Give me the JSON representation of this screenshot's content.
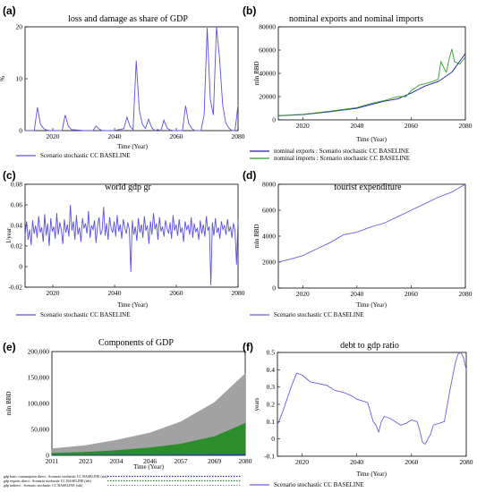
{
  "chart_data": [
    {
      "id": "a",
      "panel_label": "(a)",
      "type": "line",
      "title": "loss and damage as share of GDP",
      "xlabel": "Time (Year)",
      "ylabel": "%",
      "xlim": [
        2011,
        2080
      ],
      "ylim": [
        0,
        20
      ],
      "xticks": [
        "2020",
        "2040",
        "2060",
        "2080"
      ],
      "yticks": [
        "0",
        "10",
        "20"
      ],
      "series": [
        {
          "name": "Scenario stochastic CC BASELINE",
          "color": "#5a4fe6",
          "x": [
            2011,
            2014,
            2015,
            2016,
            2017,
            2018,
            2019,
            2020,
            2023,
            2024,
            2025,
            2026,
            2030,
            2033,
            2034,
            2035,
            2036,
            2037,
            2040,
            2043,
            2044,
            2045,
            2046,
            2047,
            2048,
            2049,
            2050,
            2051,
            2052,
            2053,
            2054,
            2055,
            2056,
            2057,
            2058,
            2059,
            2060,
            2061,
            2062,
            2063,
            2064,
            2065,
            2066,
            2067,
            2068,
            2069,
            2070,
            2071,
            2072,
            2073,
            2074,
            2075,
            2076,
            2077,
            2078,
            2079,
            2080
          ],
          "y": [
            0,
            0,
            4.5,
            1.2,
            0.4,
            0.1,
            0,
            0,
            0,
            3,
            0.9,
            0.2,
            0,
            0,
            0.9,
            0.3,
            0,
            0,
            0,
            0.4,
            2.6,
            0.8,
            0.2,
            13.5,
            4,
            1.2,
            0.4,
            2.2,
            0.6,
            0,
            0.2,
            0,
            2,
            0.5,
            0.1,
            0,
            0,
            0,
            0,
            4.8,
            1.4,
            0.4,
            0,
            0,
            0,
            3,
            19.8,
            6,
            3,
            20,
            14,
            5,
            1.5,
            0.5,
            0,
            0,
            5
          ]
        }
      ]
    },
    {
      "id": "b",
      "panel_label": "(b)",
      "type": "line",
      "title": "nominal exports and nominal imports",
      "xlabel": "Time (Year)",
      "ylabel": "mln BBD",
      "xlim": [
        2011,
        2080
      ],
      "ylim": [
        0,
        80000
      ],
      "xticks": [
        "2020",
        "2040",
        "2060",
        "2080"
      ],
      "yticks": [
        "0",
        "20000",
        "40000",
        "60000",
        "80000"
      ],
      "series": [
        {
          "name": "nominal exports : Scenario stochastic CC BASELINE",
          "color": "#1f1aa8",
          "x": [
            2011,
            2020,
            2030,
            2040,
            2045,
            2050,
            2055,
            2060,
            2065,
            2070,
            2075,
            2080
          ],
          "y": [
            3500,
            4500,
            7000,
            10000,
            13000,
            16000,
            18000,
            23000,
            29000,
            33000,
            41000,
            57000
          ]
        },
        {
          "name": "nominal imports : Scenario stochastic CC BASELINE",
          "color": "#2ca02c",
          "x": [
            2011,
            2020,
            2030,
            2040,
            2045,
            2047,
            2050,
            2055,
            2058,
            2060,
            2063,
            2065,
            2068,
            2070,
            2071,
            2072,
            2073,
            2074,
            2075,
            2076,
            2078,
            2080
          ],
          "y": [
            3700,
            4800,
            7500,
            10500,
            14000,
            15000,
            16500,
            20000,
            20000,
            25000,
            30000,
            31000,
            33000,
            35000,
            50000,
            45000,
            41000,
            52000,
            61000,
            50000,
            48000,
            54000
          ]
        }
      ]
    },
    {
      "id": "c",
      "panel_label": "(c)",
      "type": "line",
      "title": "world gdp gr",
      "xlabel": "Time (Year)",
      "ylabel": "1/year",
      "xlim": [
        2011,
        2080
      ],
      "ylim": [
        -0.02,
        0.08
      ],
      "xticks": [
        "2020",
        "2040",
        "2060",
        "2080"
      ],
      "yticks": [
        "-0.02",
        "0",
        "0.02",
        "0.04",
        "0.06",
        "0.08"
      ],
      "series": [
        {
          "name": "Scenario stochastic CC BASELINE",
          "color": "#5a4fe6",
          "y": [
            0.03,
            0.044,
            0.026,
            0.036,
            0.021,
            0.045,
            0.032,
            0.04,
            0.028,
            0.049,
            0.033,
            0.038,
            0.024,
            0.051,
            0.03,
            0.042,
            0.02,
            0.047,
            0.034,
            0.039,
            0.027,
            0.052,
            0.031,
            0.043,
            0.036,
            0.022,
            0.046,
            0.033,
            0.041,
            0.029,
            0.06,
            0.035,
            0.044,
            0.026,
            0.05,
            0.031,
            0.038,
            0.024,
            0.047,
            0.037,
            0.042,
            0.032,
            0.054,
            0.028,
            0.04,
            0.036,
            0.045,
            0.023,
            0.039,
            0.048,
            0.031,
            0.035,
            0.058,
            0.03,
            0.042,
            0.026,
            0.048,
            0.037,
            0.033,
            0.044,
            0.029,
            0.05,
            0.034,
            0.041,
            0.027,
            0.046,
            0.038,
            0.032,
            0.043,
            0.036,
            -0.005,
            0.045,
            0.031,
            0.039,
            0.025,
            0.047,
            0.033,
            0.041,
            0.028,
            0.049,
            0.035,
            0.04,
            0.022,
            0.044,
            0.031,
            0.052,
            0.036,
            0.042,
            0.026,
            0.048,
            0.034,
            0.039,
            0.029,
            0.045,
            0.037,
            0.032,
            0.043,
            0.027,
            0.05,
            0.035,
            0.041,
            0.03,
            0.046,
            0.033,
            0.038,
            0.024,
            0.044,
            0.036,
            0.04,
            0.031,
            0.048,
            0.028,
            0.042,
            0.034,
            0.037,
            0.026,
            0.045,
            0.032,
            0.041,
            0.029,
            0.049,
            0.035,
            0.039,
            -0.018,
            0.043,
            0.03,
            0.047,
            0.033,
            0.038,
            0.027,
            0.044,
            0.036,
            0.04,
            0.031,
            0.046,
            0.034,
            0.039,
            0.028,
            0.042,
            0.035,
            0.002,
            0.045
          ]
        }
      ]
    },
    {
      "id": "d",
      "panel_label": "(d)",
      "type": "line",
      "title": "tourist expenditure",
      "xlabel": "Time (Year)",
      "ylabel": "mln BBD",
      "xlim": [
        2011,
        2080
      ],
      "ylim": [
        0,
        8000
      ],
      "xticks": [
        "2020",
        "2040",
        "2060",
        "2080"
      ],
      "yticks": [
        "0",
        "2000",
        "4000",
        "6000",
        "8000"
      ],
      "series": [
        {
          "name": "Scenario stochastic CC BASELINE",
          "color": "#6a5fe8",
          "x": [
            2011,
            2015,
            2020,
            2025,
            2030,
            2035,
            2040,
            2045,
            2050,
            2055,
            2060,
            2065,
            2070,
            2075,
            2080
          ],
          "y": [
            2000,
            2200,
            2500,
            3000,
            3500,
            4100,
            4300,
            4700,
            5000,
            5500,
            6000,
            6500,
            7000,
            7400,
            8000
          ]
        }
      ]
    },
    {
      "id": "e",
      "panel_label": "(e)",
      "type": "area",
      "title": "Components of GDP",
      "xlabel": "Time (Year)",
      "ylabel": "mln BBD",
      "xlim": [
        2011,
        2080
      ],
      "ylim": [
        0,
        200000
      ],
      "xticks": [
        "2011",
        "2023",
        "2034",
        "2046",
        "2057",
        "2069",
        "2080"
      ],
      "yticks": [
        "0",
        "50,000",
        "100,000",
        "150,000",
        "200,000"
      ],
      "x": [
        2011,
        2023,
        2034,
        2046,
        2057,
        2069,
        2080
      ],
      "series": [
        {
          "name": "gdp basic consumption direct : Scenario stochastic CC BASELINE (stk)",
          "color": "#2a2ab8",
          "values": [
            800,
            1000,
            1200,
            1400,
            1700,
            2000,
            2500
          ]
        },
        {
          "name": "gdp exports direct : Scenario stochastic CC BASELINE (stk)",
          "color": "#1f8a1f",
          "values": [
            4000,
            6000,
            9000,
            14000,
            21000,
            35000,
            60000
          ]
        },
        {
          "name": "gdp indirect : Scenario stochastic CC BASELINE (stk)",
          "color": "#9e9e9e",
          "values": [
            8000,
            12000,
            19000,
            28000,
            42000,
            65000,
            95000
          ]
        }
      ]
    },
    {
      "id": "f",
      "panel_label": "(f)",
      "type": "line",
      "title": "debt to gdp ratio",
      "xlabel": "Time (Year)",
      "ylabel": "years",
      "xlim": [
        2011,
        2080
      ],
      "ylim": [
        -0.1,
        0.5
      ],
      "xticks": [
        "2020",
        "2040",
        "2060",
        "2080"
      ],
      "yticks": [
        "-0.1",
        "0",
        "0.1",
        "0.2",
        "0.3",
        "0.4",
        "0.5"
      ],
      "series": [
        {
          "name": "Scenario stochastic CC BASELINE",
          "color": "#6a5fe8",
          "x": [
            2011,
            2013,
            2016,
            2018,
            2020,
            2023,
            2026,
            2029,
            2032,
            2035,
            2038,
            2040,
            2042,
            2044,
            2046,
            2047,
            2048,
            2049,
            2050,
            2052,
            2054,
            2056,
            2058,
            2060,
            2062,
            2063,
            2064,
            2065,
            2066,
            2067,
            2068,
            2070,
            2072,
            2074,
            2076,
            2077,
            2078,
            2079,
            2080
          ],
          "y": [
            0.08,
            0.16,
            0.3,
            0.38,
            0.37,
            0.33,
            0.32,
            0.31,
            0.28,
            0.27,
            0.25,
            0.23,
            0.22,
            0.21,
            0.1,
            0.08,
            0.04,
            0.1,
            0.13,
            0.12,
            0.1,
            0.08,
            0.09,
            0.11,
            0.1,
            0.05,
            -0.02,
            -0.03,
            0.0,
            0.03,
            0.08,
            0.09,
            0.1,
            0.28,
            0.44,
            0.49,
            0.5,
            0.47,
            0.4
          ]
        }
      ]
    }
  ]
}
